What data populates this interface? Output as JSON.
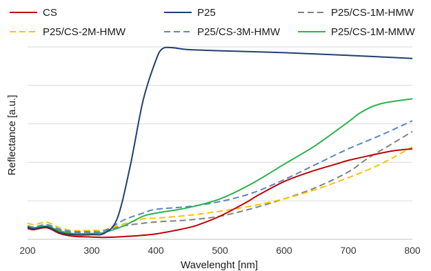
{
  "chart_data": {
    "type": "line",
    "xlabel": "Wavelenght [nm]",
    "ylabel": "Reflectance [a.u.]",
    "xlim": [
      200,
      800
    ],
    "ylim": [
      0,
      5
    ],
    "xticks": [
      200,
      300,
      400,
      500,
      600,
      700,
      800
    ],
    "y_tick_labels_shown": false,
    "grid": "horizontal",
    "legend_placement": "top",
    "series": [
      {
        "name": "CS",
        "color": "#c00000",
        "dash": "solid",
        "x": [
          200,
          210,
          230,
          250,
          270,
          300,
          320,
          350,
          400,
          450,
          470,
          500,
          540,
          560,
          600,
          640,
          680,
          700,
          740,
          770,
          800
        ],
        "y": [
          0.28,
          0.25,
          0.3,
          0.15,
          0.08,
          0.06,
          0.05,
          0.07,
          0.14,
          0.3,
          0.4,
          0.6,
          0.95,
          1.15,
          1.5,
          1.75,
          1.95,
          2.05,
          2.2,
          2.3,
          2.35
        ]
      },
      {
        "name": "P25",
        "color": "#1f3f6e",
        "dash": "solid",
        "x": [
          200,
          210,
          230,
          250,
          270,
          300,
          320,
          340,
          360,
          380,
          400,
          410,
          425,
          450,
          500,
          600,
          700,
          800
        ],
        "y": [
          0.32,
          0.27,
          0.32,
          0.18,
          0.12,
          0.12,
          0.16,
          0.55,
          1.9,
          3.6,
          4.65,
          4.95,
          4.98,
          4.93,
          4.9,
          4.85,
          4.78,
          4.7
        ]
      },
      {
        "name": "P25/CS-1M-HMW",
        "color": "#808080",
        "dash": "dashed",
        "x": [
          200,
          210,
          230,
          250,
          270,
          300,
          320,
          350,
          400,
          450,
          500,
          550,
          600,
          650,
          700,
          730,
          760,
          800
        ],
        "y": [
          0.33,
          0.3,
          0.35,
          0.23,
          0.17,
          0.17,
          0.22,
          0.35,
          0.45,
          0.5,
          0.6,
          0.8,
          1.05,
          1.35,
          1.75,
          2.1,
          2.4,
          2.8
        ]
      },
      {
        "name": "P25/CS-2M-HMW",
        "color": "#ffc000",
        "dash": "dashed",
        "x": [
          200,
          210,
          230,
          250,
          270,
          300,
          320,
          350,
          380,
          400,
          450,
          500,
          550,
          600,
          650,
          700,
          750,
          800
        ],
        "y": [
          0.42,
          0.38,
          0.44,
          0.3,
          0.23,
          0.23,
          0.25,
          0.4,
          0.53,
          0.55,
          0.62,
          0.73,
          0.87,
          1.05,
          1.3,
          1.6,
          1.95,
          2.4
        ]
      },
      {
        "name": "P25/CS-3M-HMW",
        "color": "#5b84c4",
        "dash": "dashed",
        "x": [
          200,
          210,
          230,
          250,
          270,
          300,
          320,
          350,
          380,
          400,
          450,
          500,
          550,
          600,
          650,
          700,
          750,
          800
        ],
        "y": [
          0.35,
          0.32,
          0.38,
          0.26,
          0.2,
          0.2,
          0.22,
          0.5,
          0.68,
          0.78,
          0.85,
          0.98,
          1.2,
          1.55,
          1.95,
          2.35,
          2.7,
          3.08
        ]
      },
      {
        "name": "P25/CS-1M-MMW",
        "color": "#2ab24b",
        "dash": "solid",
        "x": [
          200,
          210,
          230,
          250,
          270,
          300,
          320,
          350,
          380,
          400,
          450,
          500,
          550,
          600,
          650,
          700,
          720,
          750,
          800
        ],
        "y": [
          0.33,
          0.3,
          0.34,
          0.22,
          0.15,
          0.15,
          0.18,
          0.35,
          0.6,
          0.68,
          0.82,
          1.05,
          1.45,
          1.95,
          2.45,
          3.05,
          3.3,
          3.52,
          3.65
        ]
      }
    ]
  }
}
